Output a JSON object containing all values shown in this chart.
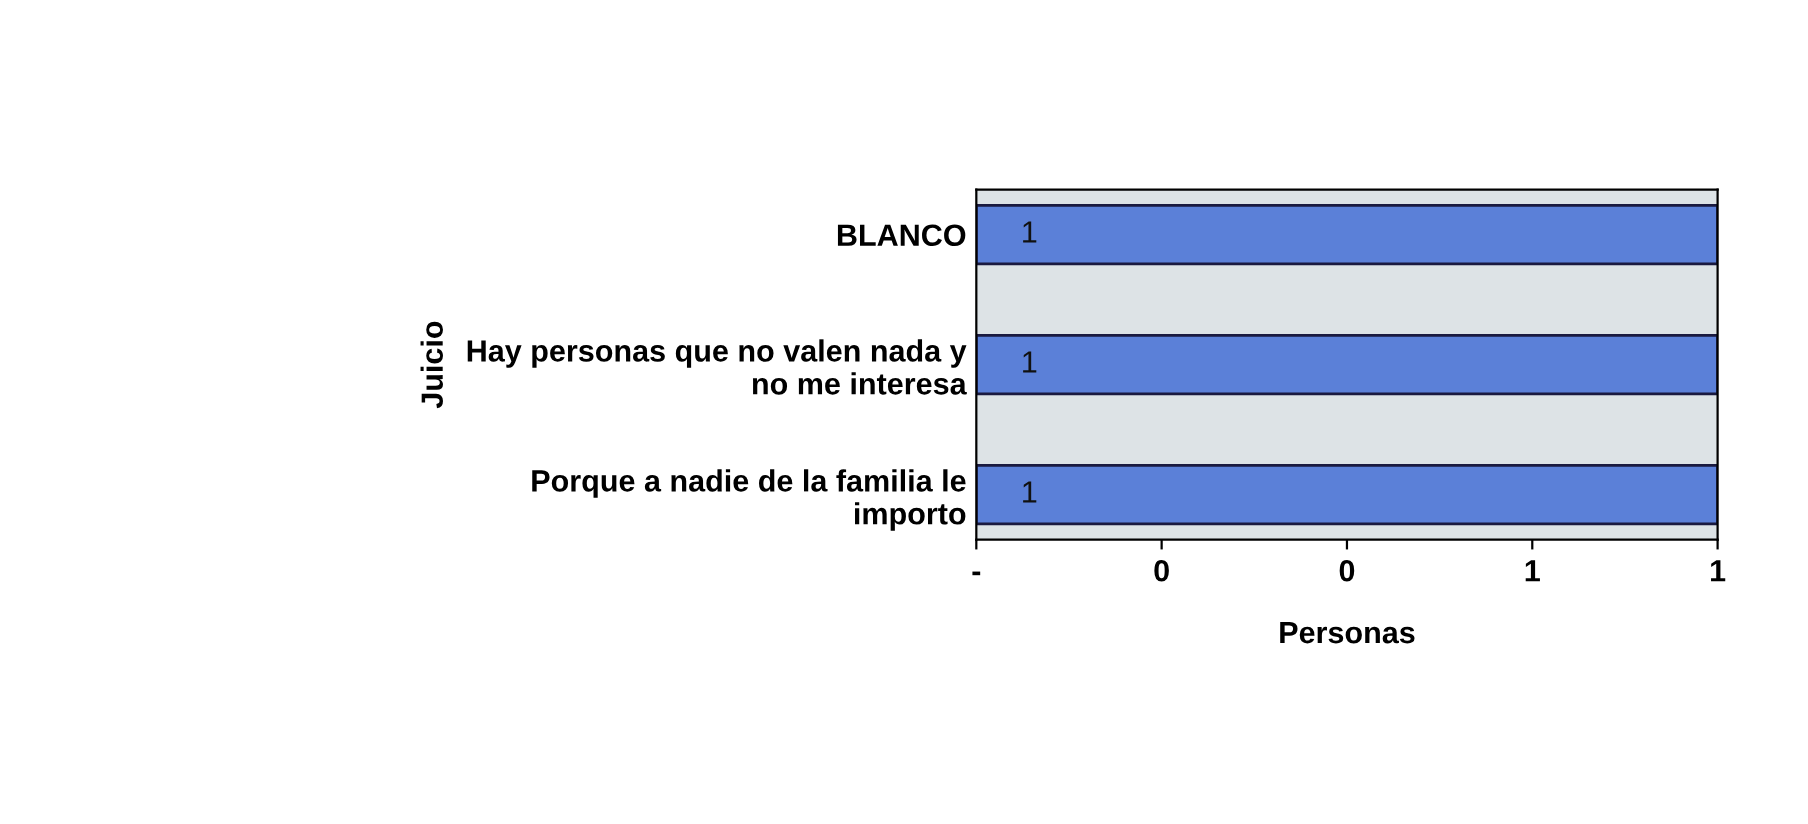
{
  "chart_data": {
    "type": "bar",
    "orientation": "horizontal",
    "xlabel": "Personas",
    "ylabel": "Juicio",
    "categories": [
      "BLANCO",
      "Hay personas que no valen nada y\nno me interesa",
      "Porque a nadie de la familia le\nimporto"
    ],
    "values": [
      1,
      1,
      1
    ],
    "color": "#5b80d8",
    "data_labels": true,
    "xlim": [
      0,
      1
    ],
    "xticks": [
      {
        "value": 0,
        "label": "-"
      },
      {
        "value": 0.25,
        "label": "0"
      },
      {
        "value": 0.5,
        "label": "0"
      },
      {
        "value": 0.75,
        "label": "1"
      },
      {
        "value": 1,
        "label": "1"
      }
    ],
    "grid": false,
    "legend": false
  }
}
